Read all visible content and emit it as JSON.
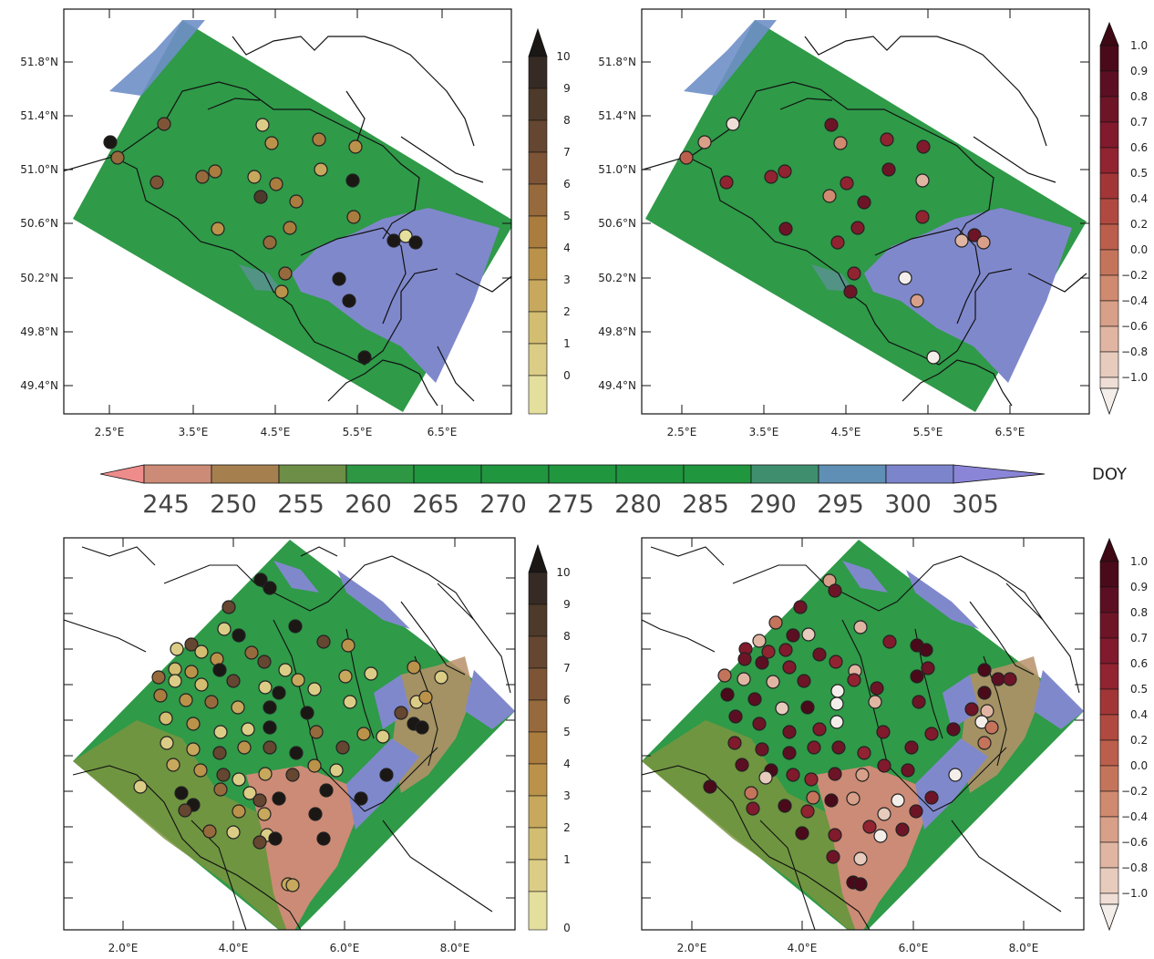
{
  "panels": [
    {
      "id": "top-left",
      "lat_labels": [
        "51.8°N",
        "51.4°N",
        "51.0°N",
        "50.6°N",
        "50.2°N",
        "49.8°N",
        "49.4°N"
      ],
      "lon_labels": [
        "2.5°E",
        "3.5°E",
        "4.5°E",
        "5.5°E",
        "6.5°E"
      ],
      "cbar_labels": [
        "10",
        "9",
        "8",
        "7",
        "6",
        "5",
        "4",
        "3",
        "2",
        "1",
        "0"
      ],
      "cbar_colors": [
        "#352b24",
        "#4e3a2a",
        "#654630",
        "#7d5536",
        "#966a3c",
        "#aa7c3e",
        "#bb924a",
        "#c7a85c",
        "#d2bd70",
        "#dccd86",
        "#e5df9e"
      ],
      "cbar_type": "count"
    },
    {
      "id": "top-right",
      "lat_labels": [
        "51.8°N",
        "51.4°N",
        "51.0°N",
        "50.6°N",
        "50.2°N",
        "49.8°N",
        "49.4°N"
      ],
      "lon_labels": [
        "2.5°E",
        "3.5°E",
        "4.5°E",
        "5.5°E",
        "6.5°E"
      ],
      "cbar_labels": [
        "1.0",
        "0.9",
        "0.8",
        "0.7",
        "0.6",
        "0.5",
        "0.4",
        "0.2",
        "0.0",
        "−0.2",
        "−0.4",
        "−0.6",
        "−0.8",
        "−1.0"
      ],
      "cbar_colors": [
        "#4a0a1a",
        "#5c0f22",
        "#6e1427",
        "#801a2c",
        "#922331",
        "#a23637",
        "#b04a40",
        "#bb5f4c",
        "#c5745c",
        "#cf8a6f",
        "#d8a088",
        "#e0b6a3",
        "#e7cbbd",
        "#eeded6",
        "#f4eeea"
      ],
      "cbar_type": "corr"
    },
    {
      "id": "bottom-left",
      "lon_labels": [
        "2.0°E",
        "4.0°E",
        "6.0°E",
        "8.0°E"
      ],
      "cbar_labels": [
        "10",
        "9",
        "8",
        "7",
        "6",
        "5",
        "4",
        "3",
        "2",
        "1",
        "0"
      ],
      "cbar_type": "count"
    },
    {
      "id": "bottom-right",
      "lon_labels": [
        "2.0°E",
        "4.0°E",
        "6.0°E",
        "8.0°E"
      ],
      "cbar_labels": [
        "1.0",
        "0.9",
        "0.8",
        "0.7",
        "0.6",
        "0.5",
        "0.4",
        "0.2",
        "0.0",
        "−0.2",
        "−0.4",
        "−0.6",
        "−0.8",
        "−1.0"
      ],
      "cbar_type": "corr"
    }
  ],
  "doy_colorbar": {
    "unit_label": "DOY",
    "labels": [
      "245",
      "250",
      "255",
      "260",
      "265",
      "270",
      "275",
      "280",
      "285",
      "290",
      "295",
      "300",
      "305"
    ],
    "colors": [
      "#ee8c8c",
      "#cc8b76",
      "#a5804e",
      "#6d8e46",
      "#2d9744",
      "#20963f",
      "#20963f",
      "#20963f",
      "#20963f",
      "#20963f",
      "#3f8f6e",
      "#5f8fb4",
      "#7c85cc",
      "#8b85d8"
    ]
  },
  "map_colors": {
    "green": "#2f9a48",
    "blue": "#8088cc",
    "pink": "#cc8b76",
    "olive": "#7a9440",
    "border": "#111111"
  }
}
